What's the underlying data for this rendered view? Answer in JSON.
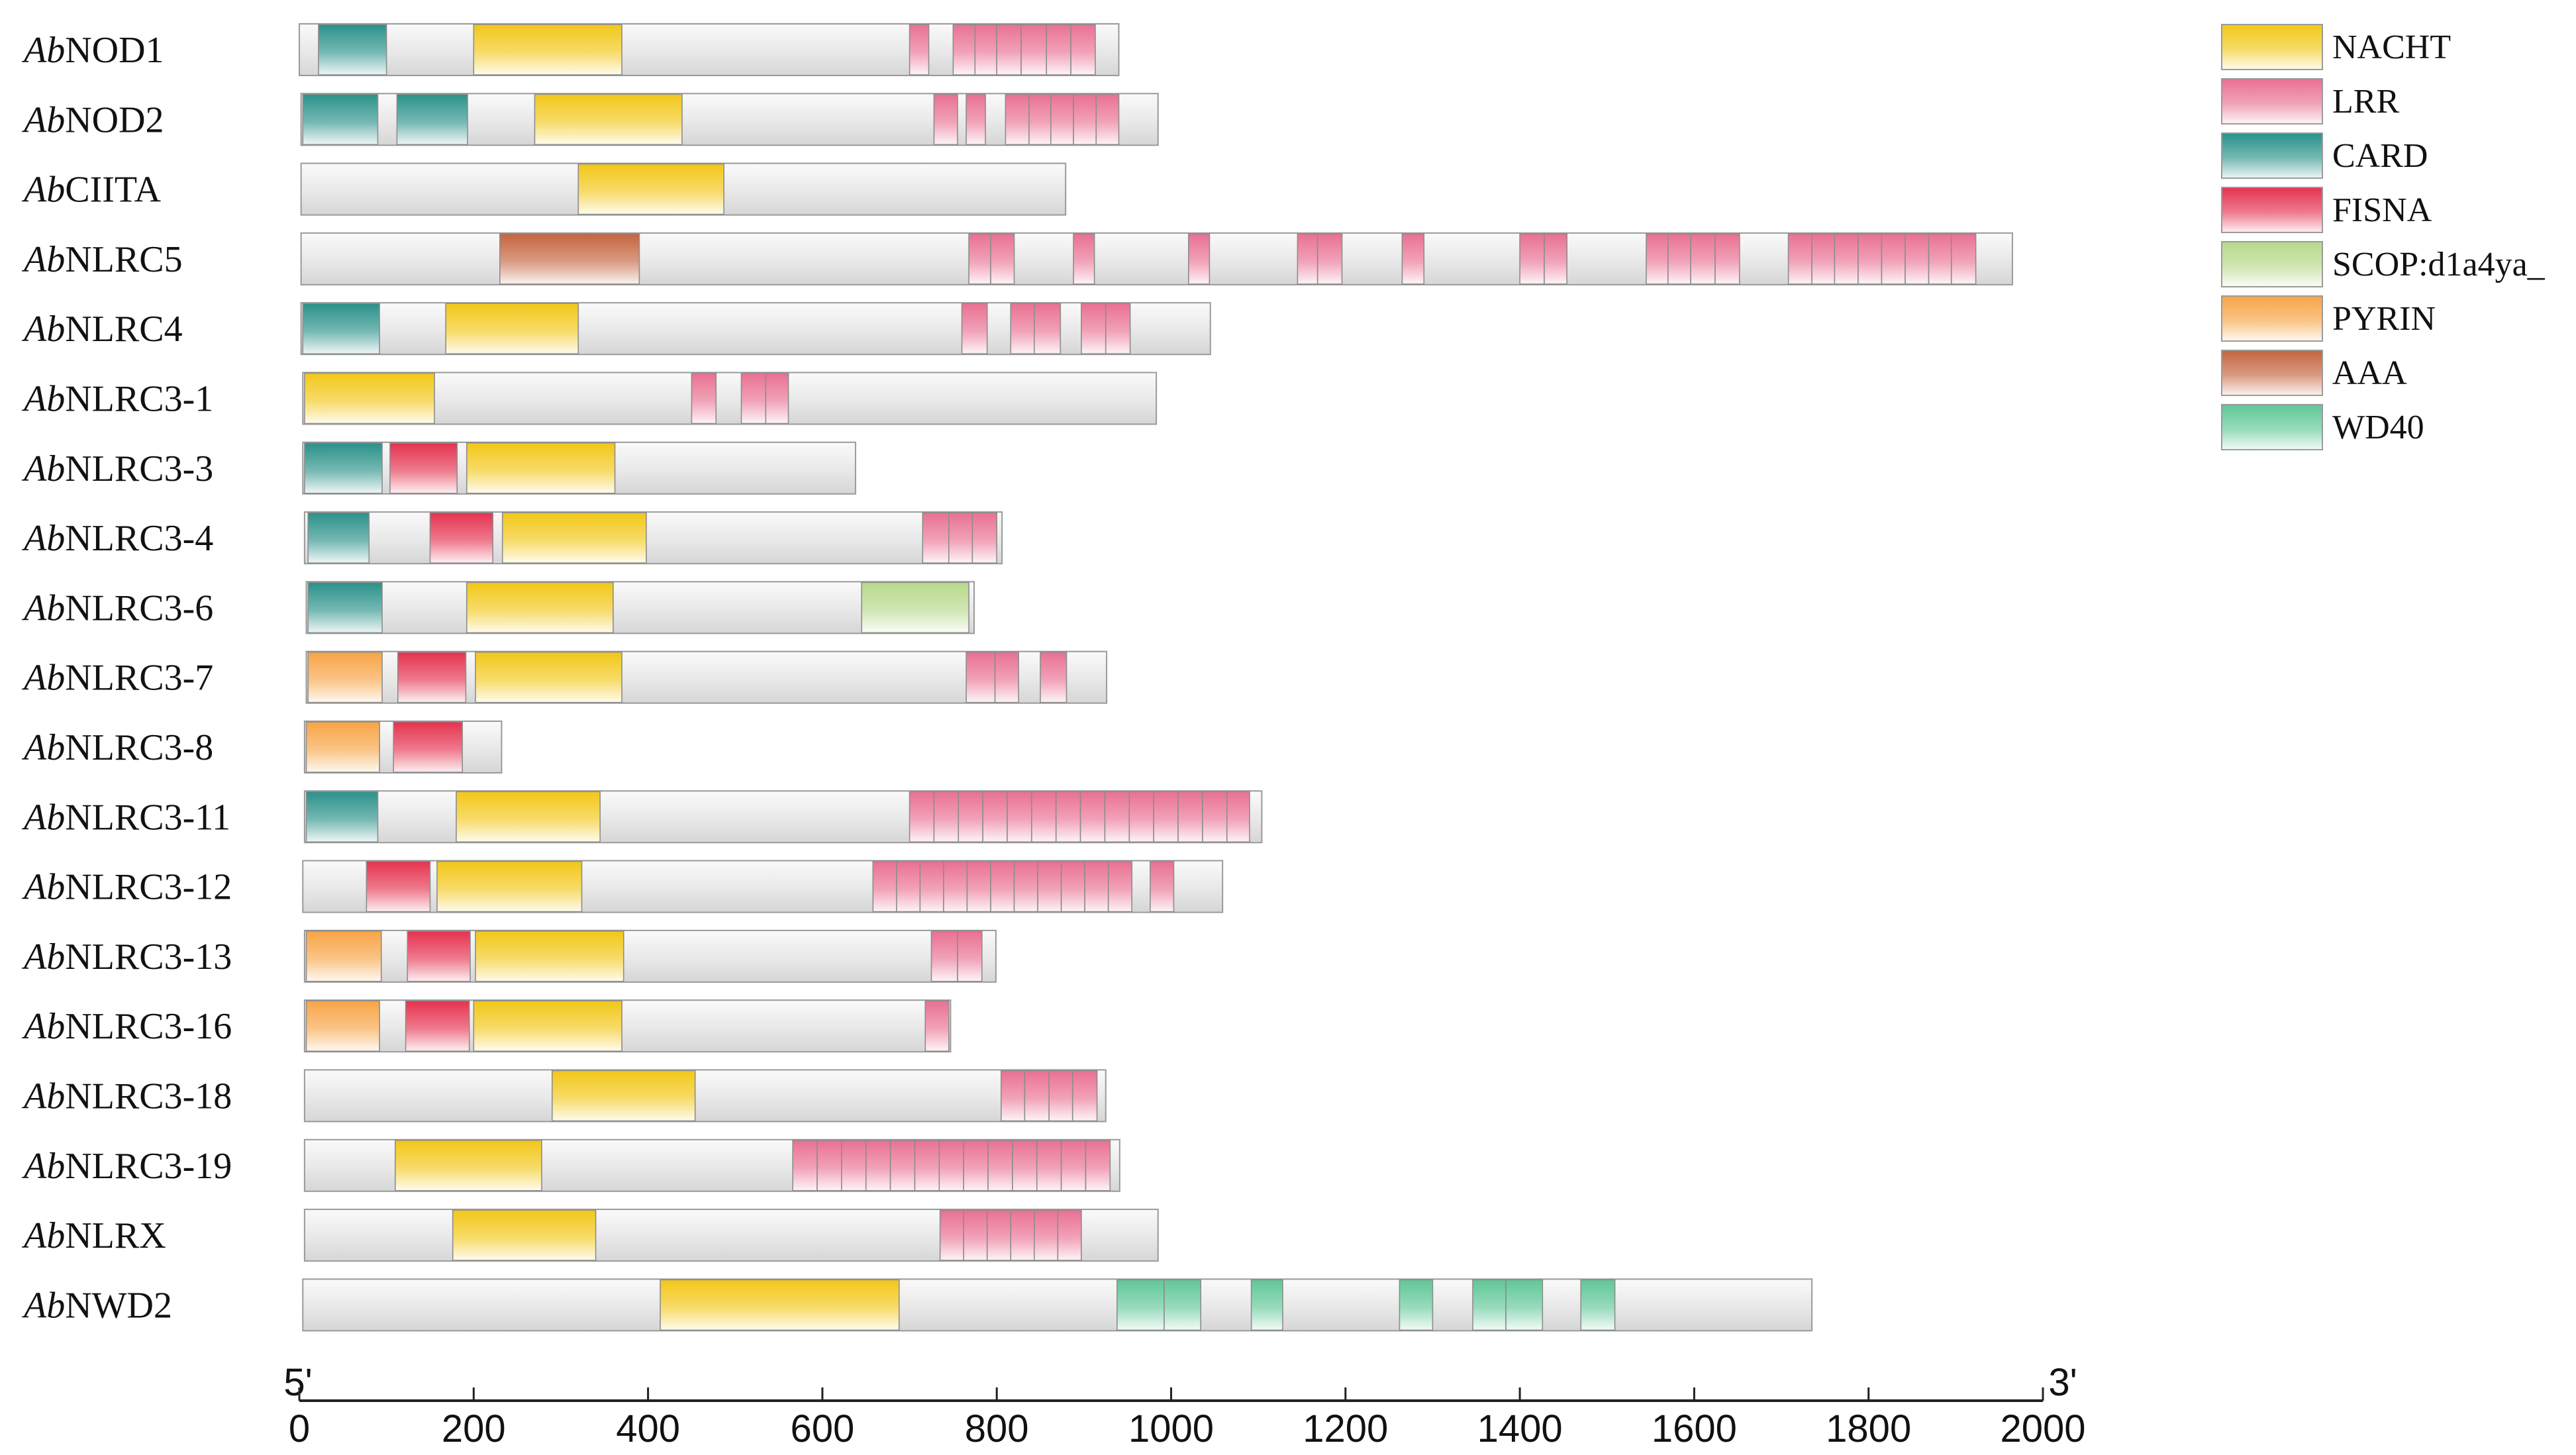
{
  "chart_data": {
    "type": "domain-architecture",
    "x_axis": {
      "min": 0,
      "max": 2000,
      "ticks": [
        0,
        200,
        400,
        600,
        800,
        1000,
        1200,
        1400,
        1600,
        1800,
        2000
      ],
      "tick_labels": [
        "0",
        "200",
        "400",
        "600",
        "800",
        "1000",
        "1200",
        "1400",
        "1600",
        "1800",
        "2000"
      ],
      "left_label": "5'",
      "right_label": "3'"
    },
    "legend": [
      {
        "key": "NACHT",
        "label": "NACHT",
        "color": "#f2c718"
      },
      {
        "key": "LRR",
        "label": "LRR",
        "color": "#e97092"
      },
      {
        "key": "CARD",
        "label": "CARD",
        "color": "#2a918a"
      },
      {
        "key": "FISNA",
        "label": "FISNA",
        "color": "#e5324f"
      },
      {
        "key": "SCOP",
        "label": "SCOP:d1a4ya_",
        "color": "#b6d98a"
      },
      {
        "key": "PYRIN",
        "label": "PYRIN",
        "color": "#f8a445"
      },
      {
        "key": "AAA",
        "label": "AAA",
        "color": "#c4643e"
      },
      {
        "key": "WD40",
        "label": "WD40",
        "color": "#5fc797"
      }
    ],
    "proteins": [
      {
        "prefix": "Ab",
        "name": "NOD1",
        "start": 0,
        "length": 940,
        "domains": [
          [
            "CARD",
            22,
            100
          ],
          [
            "NACHT",
            200,
            370
          ],
          [
            "LRR",
            700,
            722
          ],
          [
            "LRR",
            750,
            775
          ],
          [
            "LRR",
            775,
            800
          ],
          [
            "LRR",
            800,
            828
          ],
          [
            "LRR",
            828,
            857
          ],
          [
            "LRR",
            857,
            885
          ],
          [
            "LRR",
            885,
            913
          ]
        ]
      },
      {
        "prefix": "Ab",
        "name": "NOD2",
        "start": 2,
        "length": 983,
        "domains": [
          [
            "CARD",
            4,
            90
          ],
          [
            "CARD",
            112,
            193
          ],
          [
            "NACHT",
            270,
            439
          ],
          [
            "LRR",
            728,
            755
          ],
          [
            "LRR",
            765,
            787
          ],
          [
            "LRR",
            810,
            837
          ],
          [
            "LRR",
            837,
            862
          ],
          [
            "LRR",
            862,
            888
          ],
          [
            "LRR",
            888,
            914
          ],
          [
            "LRR",
            914,
            940
          ]
        ]
      },
      {
        "prefix": "Ab",
        "name": "CIITA",
        "start": 2,
        "length": 877,
        "domains": [
          [
            "NACHT",
            320,
            487
          ]
        ]
      },
      {
        "prefix": "Ab",
        "name": "NLRC5",
        "start": 2,
        "length": 1963,
        "domains": [
          [
            "AAA",
            230,
            390
          ],
          [
            "LRR",
            768,
            793
          ],
          [
            "LRR",
            793,
            820
          ],
          [
            "LRR",
            888,
            912
          ],
          [
            "LRR",
            1020,
            1044
          ],
          [
            "LRR",
            1145,
            1168
          ],
          [
            "LRR",
            1168,
            1196
          ],
          [
            "LRR",
            1265,
            1290
          ],
          [
            "LRR",
            1400,
            1428
          ],
          [
            "LRR",
            1428,
            1454
          ],
          [
            "LRR",
            1545,
            1570
          ],
          [
            "LRR",
            1570,
            1596
          ],
          [
            "LRR",
            1596,
            1624
          ],
          [
            "LRR",
            1624,
            1652
          ],
          [
            "LRR",
            1708,
            1735
          ],
          [
            "LRR",
            1735,
            1761
          ],
          [
            "LRR",
            1761,
            1788
          ],
          [
            "LRR",
            1788,
            1815
          ],
          [
            "LRR",
            1815,
            1842
          ],
          [
            "LRR",
            1842,
            1869
          ],
          [
            "LRR",
            1869,
            1895
          ],
          [
            "LRR",
            1895,
            1923
          ]
        ]
      },
      {
        "prefix": "Ab",
        "name": "NLRC4",
        "start": 2,
        "length": 1043,
        "domains": [
          [
            "CARD",
            4,
            92
          ],
          [
            "NACHT",
            168,
            320
          ],
          [
            "LRR",
            760,
            789
          ],
          [
            "LRR",
            816,
            843
          ],
          [
            "LRR",
            843,
            873
          ],
          [
            "LRR",
            897,
            925
          ],
          [
            "LRR",
            925,
            953
          ]
        ]
      },
      {
        "prefix": "Ab",
        "name": "NLRC3-1",
        "start": 4,
        "length": 979,
        "domains": [
          [
            "NACHT",
            6,
            155
          ],
          [
            "LRR",
            450,
            478
          ],
          [
            "LRR",
            507,
            535
          ],
          [
            "LRR",
            535,
            561
          ]
        ]
      },
      {
        "prefix": "Ab",
        "name": "NLRC3-3",
        "start": 4,
        "length": 634,
        "domains": [
          [
            "CARD",
            6,
            95
          ],
          [
            "FISNA",
            104,
            181
          ],
          [
            "NACHT",
            192,
            362
          ]
        ]
      },
      {
        "prefix": "Ab",
        "name": "NLRC3-4",
        "start": 6,
        "length": 800,
        "domains": [
          [
            "CARD",
            10,
            80
          ],
          [
            "FISNA",
            150,
            222
          ],
          [
            "NACHT",
            233,
            398
          ],
          [
            "LRR",
            715,
            745
          ],
          [
            "LRR",
            745,
            772
          ],
          [
            "LRR",
            772,
            800
          ]
        ]
      },
      {
        "prefix": "Ab",
        "name": "NLRC3-6",
        "start": 8,
        "length": 766,
        "domains": [
          [
            "CARD",
            10,
            95
          ],
          [
            "NACHT",
            192,
            360
          ],
          [
            "SCOP",
            645,
            768
          ]
        ]
      },
      {
        "prefix": "Ab",
        "name": "NLRC3-7",
        "start": 8,
        "length": 918,
        "domains": [
          [
            "PYRIN",
            10,
            95
          ],
          [
            "FISNA",
            113,
            191
          ],
          [
            "NACHT",
            202,
            370
          ],
          [
            "LRR",
            765,
            798
          ],
          [
            "LRR",
            798,
            825
          ],
          [
            "LRR",
            850,
            880
          ]
        ]
      },
      {
        "prefix": "Ab",
        "name": "NLRC3-8",
        "start": 6,
        "length": 226,
        "domains": [
          [
            "PYRIN",
            8,
            92
          ],
          [
            "FISNA",
            108,
            187
          ]
        ]
      },
      {
        "prefix": "Ab",
        "name": "NLRC3-11",
        "start": 6,
        "length": 1098,
        "domains": [
          [
            "CARD",
            8,
            90
          ],
          [
            "NACHT",
            180,
            345
          ],
          [
            "LRR",
            700,
            728
          ],
          [
            "LRR",
            728,
            756
          ],
          [
            "LRR",
            756,
            784
          ],
          [
            "LRR",
            784,
            812
          ],
          [
            "LRR",
            812,
            840
          ],
          [
            "LRR",
            840,
            868
          ],
          [
            "LRR",
            868,
            896
          ],
          [
            "LRR",
            896,
            924
          ],
          [
            "LRR",
            924,
            952
          ],
          [
            "LRR",
            952,
            980
          ],
          [
            "LRR",
            980,
            1008
          ],
          [
            "LRR",
            1008,
            1036
          ],
          [
            "LRR",
            1036,
            1064
          ],
          [
            "LRR",
            1064,
            1090
          ]
        ]
      },
      {
        "prefix": "Ab",
        "name": "NLRC3-12",
        "start": 4,
        "length": 1055,
        "domains": [
          [
            "FISNA",
            77,
            150
          ],
          [
            "NACHT",
            158,
            324
          ],
          [
            "LRR",
            658,
            685
          ],
          [
            "LRR",
            685,
            712
          ],
          [
            "LRR",
            712,
            739
          ],
          [
            "LRR",
            739,
            766
          ],
          [
            "LRR",
            766,
            793
          ],
          [
            "LRR",
            793,
            820
          ],
          [
            "LRR",
            820,
            847
          ],
          [
            "LRR",
            847,
            874
          ],
          [
            "LRR",
            874,
            901
          ],
          [
            "LRR",
            901,
            928
          ],
          [
            "LRR",
            928,
            955
          ],
          [
            "LRR",
            976,
            1003
          ]
        ]
      },
      {
        "prefix": "Ab",
        "name": "NLRC3-13",
        "start": 6,
        "length": 793,
        "domains": [
          [
            "PYRIN",
            8,
            94
          ],
          [
            "FISNA",
            124,
            196
          ],
          [
            "NACHT",
            202,
            372
          ],
          [
            "LRR",
            725,
            755
          ],
          [
            "LRR",
            755,
            783
          ]
        ]
      },
      {
        "prefix": "Ab",
        "name": "NLRC3-16",
        "start": 6,
        "length": 741,
        "domains": [
          [
            "PYRIN",
            8,
            92
          ],
          [
            "FISNA",
            122,
            195
          ],
          [
            "NACHT",
            200,
            370
          ],
          [
            "LRR",
            718,
            745
          ]
        ]
      },
      {
        "prefix": "Ab",
        "name": "NLRC3-18",
        "start": 6,
        "length": 919,
        "domains": [
          [
            "NACHT",
            290,
            454
          ],
          [
            "LRR",
            805,
            832
          ],
          [
            "LRR",
            832,
            860
          ],
          [
            "LRR",
            860,
            887
          ],
          [
            "LRR",
            887,
            915
          ]
        ]
      },
      {
        "prefix": "Ab",
        "name": "NLRC3-19",
        "start": 6,
        "length": 935,
        "domains": [
          [
            "NACHT",
            110,
            278
          ],
          [
            "LRR",
            566,
            594
          ],
          [
            "LRR",
            594,
            622
          ],
          [
            "LRR",
            622,
            650
          ],
          [
            "LRR",
            650,
            678
          ],
          [
            "LRR",
            678,
            706
          ],
          [
            "LRR",
            706,
            734
          ],
          [
            "LRR",
            734,
            762
          ],
          [
            "LRR",
            762,
            790
          ],
          [
            "LRR",
            790,
            818
          ],
          [
            "LRR",
            818,
            846
          ],
          [
            "LRR",
            846,
            874
          ],
          [
            "LRR",
            874,
            902
          ],
          [
            "LRR",
            902,
            930
          ]
        ]
      },
      {
        "prefix": "Ab",
        "name": "NLRX",
        "start": 6,
        "length": 979,
        "domains": [
          [
            "NACHT",
            176,
            340
          ],
          [
            "LRR",
            735,
            762
          ],
          [
            "LRR",
            762,
            789
          ],
          [
            "LRR",
            789,
            816
          ],
          [
            "LRR",
            816,
            843
          ],
          [
            "LRR",
            843,
            870
          ],
          [
            "LRR",
            870,
            897
          ]
        ]
      },
      {
        "prefix": "Ab",
        "name": "NWD2",
        "start": 4,
        "length": 1731,
        "domains": [
          [
            "NACHT",
            414,
            688
          ],
          [
            "WD40",
            938,
            992
          ],
          [
            "WD40",
            992,
            1034
          ],
          [
            "WD40",
            1092,
            1128
          ],
          [
            "WD40",
            1262,
            1300
          ],
          [
            "WD40",
            1346,
            1384
          ],
          [
            "WD40",
            1384,
            1426
          ],
          [
            "WD40",
            1470,
            1509
          ]
        ]
      }
    ]
  }
}
